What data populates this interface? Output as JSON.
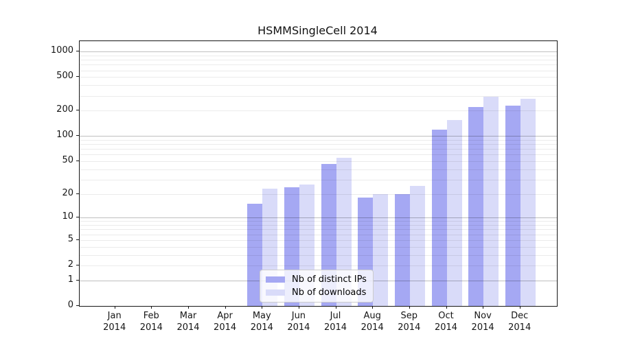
{
  "title": "HSMMSingleCell 2014",
  "legend": {
    "items": [
      {
        "label": "Nb of distinct IPs",
        "color": "#a5a8f3"
      },
      {
        "label": "Nb of downloads",
        "color": "#d9dbf9"
      }
    ]
  },
  "y_axis": {
    "tick_labels": [
      "1000",
      "500",
      "200",
      "100",
      "50",
      "20",
      "10",
      "5",
      "2",
      "1",
      "0"
    ]
  },
  "x_axis": {
    "year": "2014",
    "months": [
      "Jan",
      "Feb",
      "Mar",
      "Apr",
      "May",
      "Jun",
      "Jul",
      "Aug",
      "Sep",
      "Oct",
      "Nov",
      "Dec"
    ]
  },
  "chart_data": {
    "type": "bar",
    "title": "HSMMSingleCell 2014",
    "categories": [
      "Jan 2014",
      "Feb 2014",
      "Mar 2014",
      "Apr 2014",
      "May 2014",
      "Jun 2014",
      "Jul 2014",
      "Aug 2014",
      "Sep 2014",
      "Oct 2014",
      "Nov 2014",
      "Dec 2014"
    ],
    "series": [
      {
        "name": "Nb of distinct IPs",
        "color": "#a5a8f3",
        "values": [
          0,
          0,
          0,
          0,
          15,
          24,
          46,
          18,
          20,
          120,
          220,
          230
        ]
      },
      {
        "name": "Nb of downloads",
        "color": "#d9dbf9",
        "values": [
          0,
          0,
          0,
          0,
          23,
          26,
          55,
          20,
          25,
          154,
          295,
          275
        ]
      }
    ],
    "yscale": "log1p",
    "ylim": [
      0,
      1326
    ],
    "yticks": [
      0,
      1,
      2,
      5,
      10,
      20,
      50,
      100,
      200,
      500,
      1000
    ],
    "decade_gridlines": [
      1,
      10,
      100,
      1000
    ],
    "minor_gridlines": [
      2,
      3,
      4,
      5,
      6,
      7,
      8,
      9,
      20,
      30,
      40,
      50,
      60,
      70,
      80,
      90,
      200,
      300,
      400,
      500,
      600,
      700,
      800,
      900
    ],
    "grid": true,
    "legend_position": "lower center inside"
  }
}
